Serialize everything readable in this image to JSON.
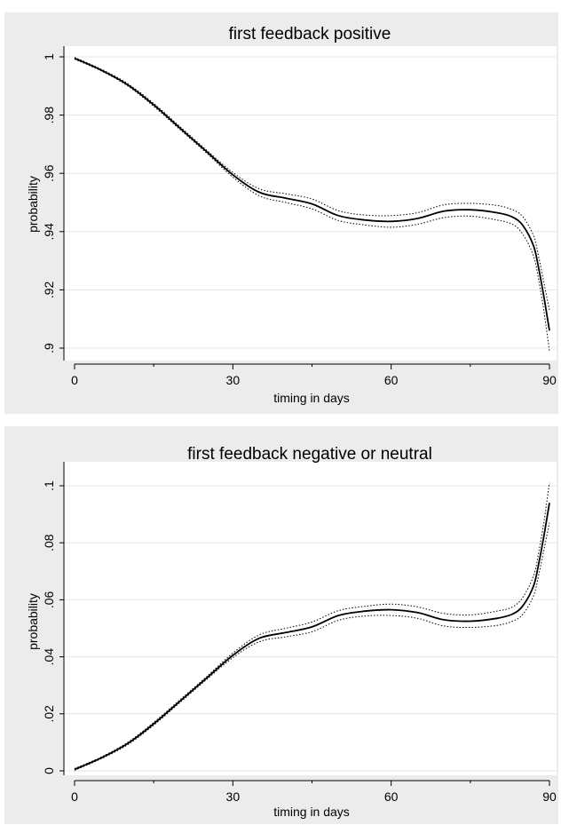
{
  "chart_data": [
    {
      "type": "line",
      "title": "first feedback positive",
      "xlabel": "timing in days",
      "ylabel": "probability",
      "xlim": [
        0,
        90
      ],
      "ylim": [
        0.9,
        1
      ],
      "x_ticks": [
        0,
        30,
        60,
        90
      ],
      "x_tick_labels": [
        "0",
        "30",
        "60",
        "90"
      ],
      "x_minor_ticks": [
        15,
        45,
        75
      ],
      "y_ticks": [
        0.9,
        0.92,
        0.94,
        0.96,
        0.98,
        1
      ],
      "y_tick_labels": [
        ".9",
        ".92",
        ".94",
        ".96",
        ".98",
        "1"
      ],
      "grid": true,
      "series": [
        {
          "style": "solid",
          "x": [
            0,
            5,
            10,
            15,
            20,
            25,
            30,
            35,
            40,
            45,
            50,
            55,
            60,
            65,
            70,
            75,
            80,
            83,
            85,
            87,
            88,
            89,
            90
          ],
          "values": [
            0.9995,
            0.9955,
            0.9905,
            0.9835,
            0.9755,
            0.9675,
            0.9595,
            0.9535,
            0.9515,
            0.9495,
            0.9455,
            0.944,
            0.9435,
            0.9445,
            0.947,
            0.9475,
            0.9465,
            0.945,
            0.942,
            0.935,
            0.927,
            0.917,
            0.906
          ]
        },
        {
          "style": "dotted",
          "x": [
            0,
            5,
            10,
            15,
            20,
            25,
            30,
            35,
            40,
            45,
            50,
            55,
            60,
            65,
            70,
            75,
            80,
            83,
            85,
            87,
            88,
            89,
            90
          ],
          "values": [
            0.9998,
            0.9958,
            0.9909,
            0.984,
            0.976,
            0.968,
            0.9603,
            0.9547,
            0.953,
            0.9512,
            0.9472,
            0.9457,
            0.9455,
            0.9465,
            0.9492,
            0.9497,
            0.949,
            0.9475,
            0.945,
            0.9385,
            0.931,
            0.922,
            0.913
          ]
        },
        {
          "style": "dotted",
          "x": [
            0,
            5,
            10,
            15,
            20,
            25,
            30,
            35,
            40,
            45,
            50,
            55,
            60,
            65,
            70,
            75,
            80,
            83,
            85,
            87,
            88,
            89,
            90
          ],
          "values": [
            0.9992,
            0.9952,
            0.9901,
            0.983,
            0.975,
            0.967,
            0.9587,
            0.9523,
            0.95,
            0.9478,
            0.9438,
            0.9423,
            0.9415,
            0.9425,
            0.9448,
            0.9453,
            0.944,
            0.9425,
            0.939,
            0.9315,
            0.923,
            0.912,
            0.899
          ]
        }
      ]
    },
    {
      "type": "line",
      "title": "first feedback negative or neutral",
      "xlabel": "timing in days",
      "ylabel": "probability",
      "xlim": [
        0,
        90
      ],
      "ylim": [
        0,
        0.1
      ],
      "x_ticks": [
        0,
        30,
        60,
        90
      ],
      "x_tick_labels": [
        "0",
        "30",
        "60",
        "90"
      ],
      "x_minor_ticks": [
        15,
        45,
        75
      ],
      "y_ticks": [
        0,
        0.02,
        0.04,
        0.06,
        0.08,
        0.1
      ],
      "y_tick_labels": [
        "0",
        ".02",
        ".04",
        ".06",
        ".08",
        ".1"
      ],
      "grid": true,
      "series": [
        {
          "style": "solid",
          "x": [
            0,
            5,
            10,
            15,
            20,
            25,
            30,
            35,
            40,
            45,
            50,
            55,
            60,
            65,
            70,
            75,
            80,
            83,
            85,
            87,
            88,
            89,
            90
          ],
          "values": [
            0.0005,
            0.0045,
            0.0095,
            0.0165,
            0.0245,
            0.0325,
            0.0405,
            0.0465,
            0.0485,
            0.0505,
            0.0545,
            0.056,
            0.0565,
            0.0555,
            0.053,
            0.0525,
            0.0535,
            0.055,
            0.058,
            0.065,
            0.073,
            0.083,
            0.094
          ]
        },
        {
          "style": "dotted",
          "x": [
            0,
            5,
            10,
            15,
            20,
            25,
            30,
            35,
            40,
            45,
            50,
            55,
            60,
            65,
            70,
            75,
            80,
            83,
            85,
            87,
            88,
            89,
            90
          ],
          "values": [
            0.0008,
            0.0048,
            0.0099,
            0.017,
            0.025,
            0.033,
            0.0413,
            0.0477,
            0.05,
            0.0522,
            0.0562,
            0.0577,
            0.0585,
            0.0575,
            0.0552,
            0.0547,
            0.056,
            0.0575,
            0.061,
            0.0685,
            0.077,
            0.088,
            0.101
          ]
        },
        {
          "style": "dotted",
          "x": [
            0,
            5,
            10,
            15,
            20,
            25,
            30,
            35,
            40,
            45,
            50,
            55,
            60,
            65,
            70,
            75,
            80,
            83,
            85,
            87,
            88,
            89,
            90
          ],
          "values": [
            0.0002,
            0.0042,
            0.0091,
            0.016,
            0.024,
            0.032,
            0.0397,
            0.0453,
            0.047,
            0.0488,
            0.0528,
            0.0543,
            0.0545,
            0.0535,
            0.0508,
            0.0503,
            0.051,
            0.0525,
            0.055,
            0.0615,
            0.069,
            0.078,
            0.087
          ]
        }
      ]
    }
  ]
}
